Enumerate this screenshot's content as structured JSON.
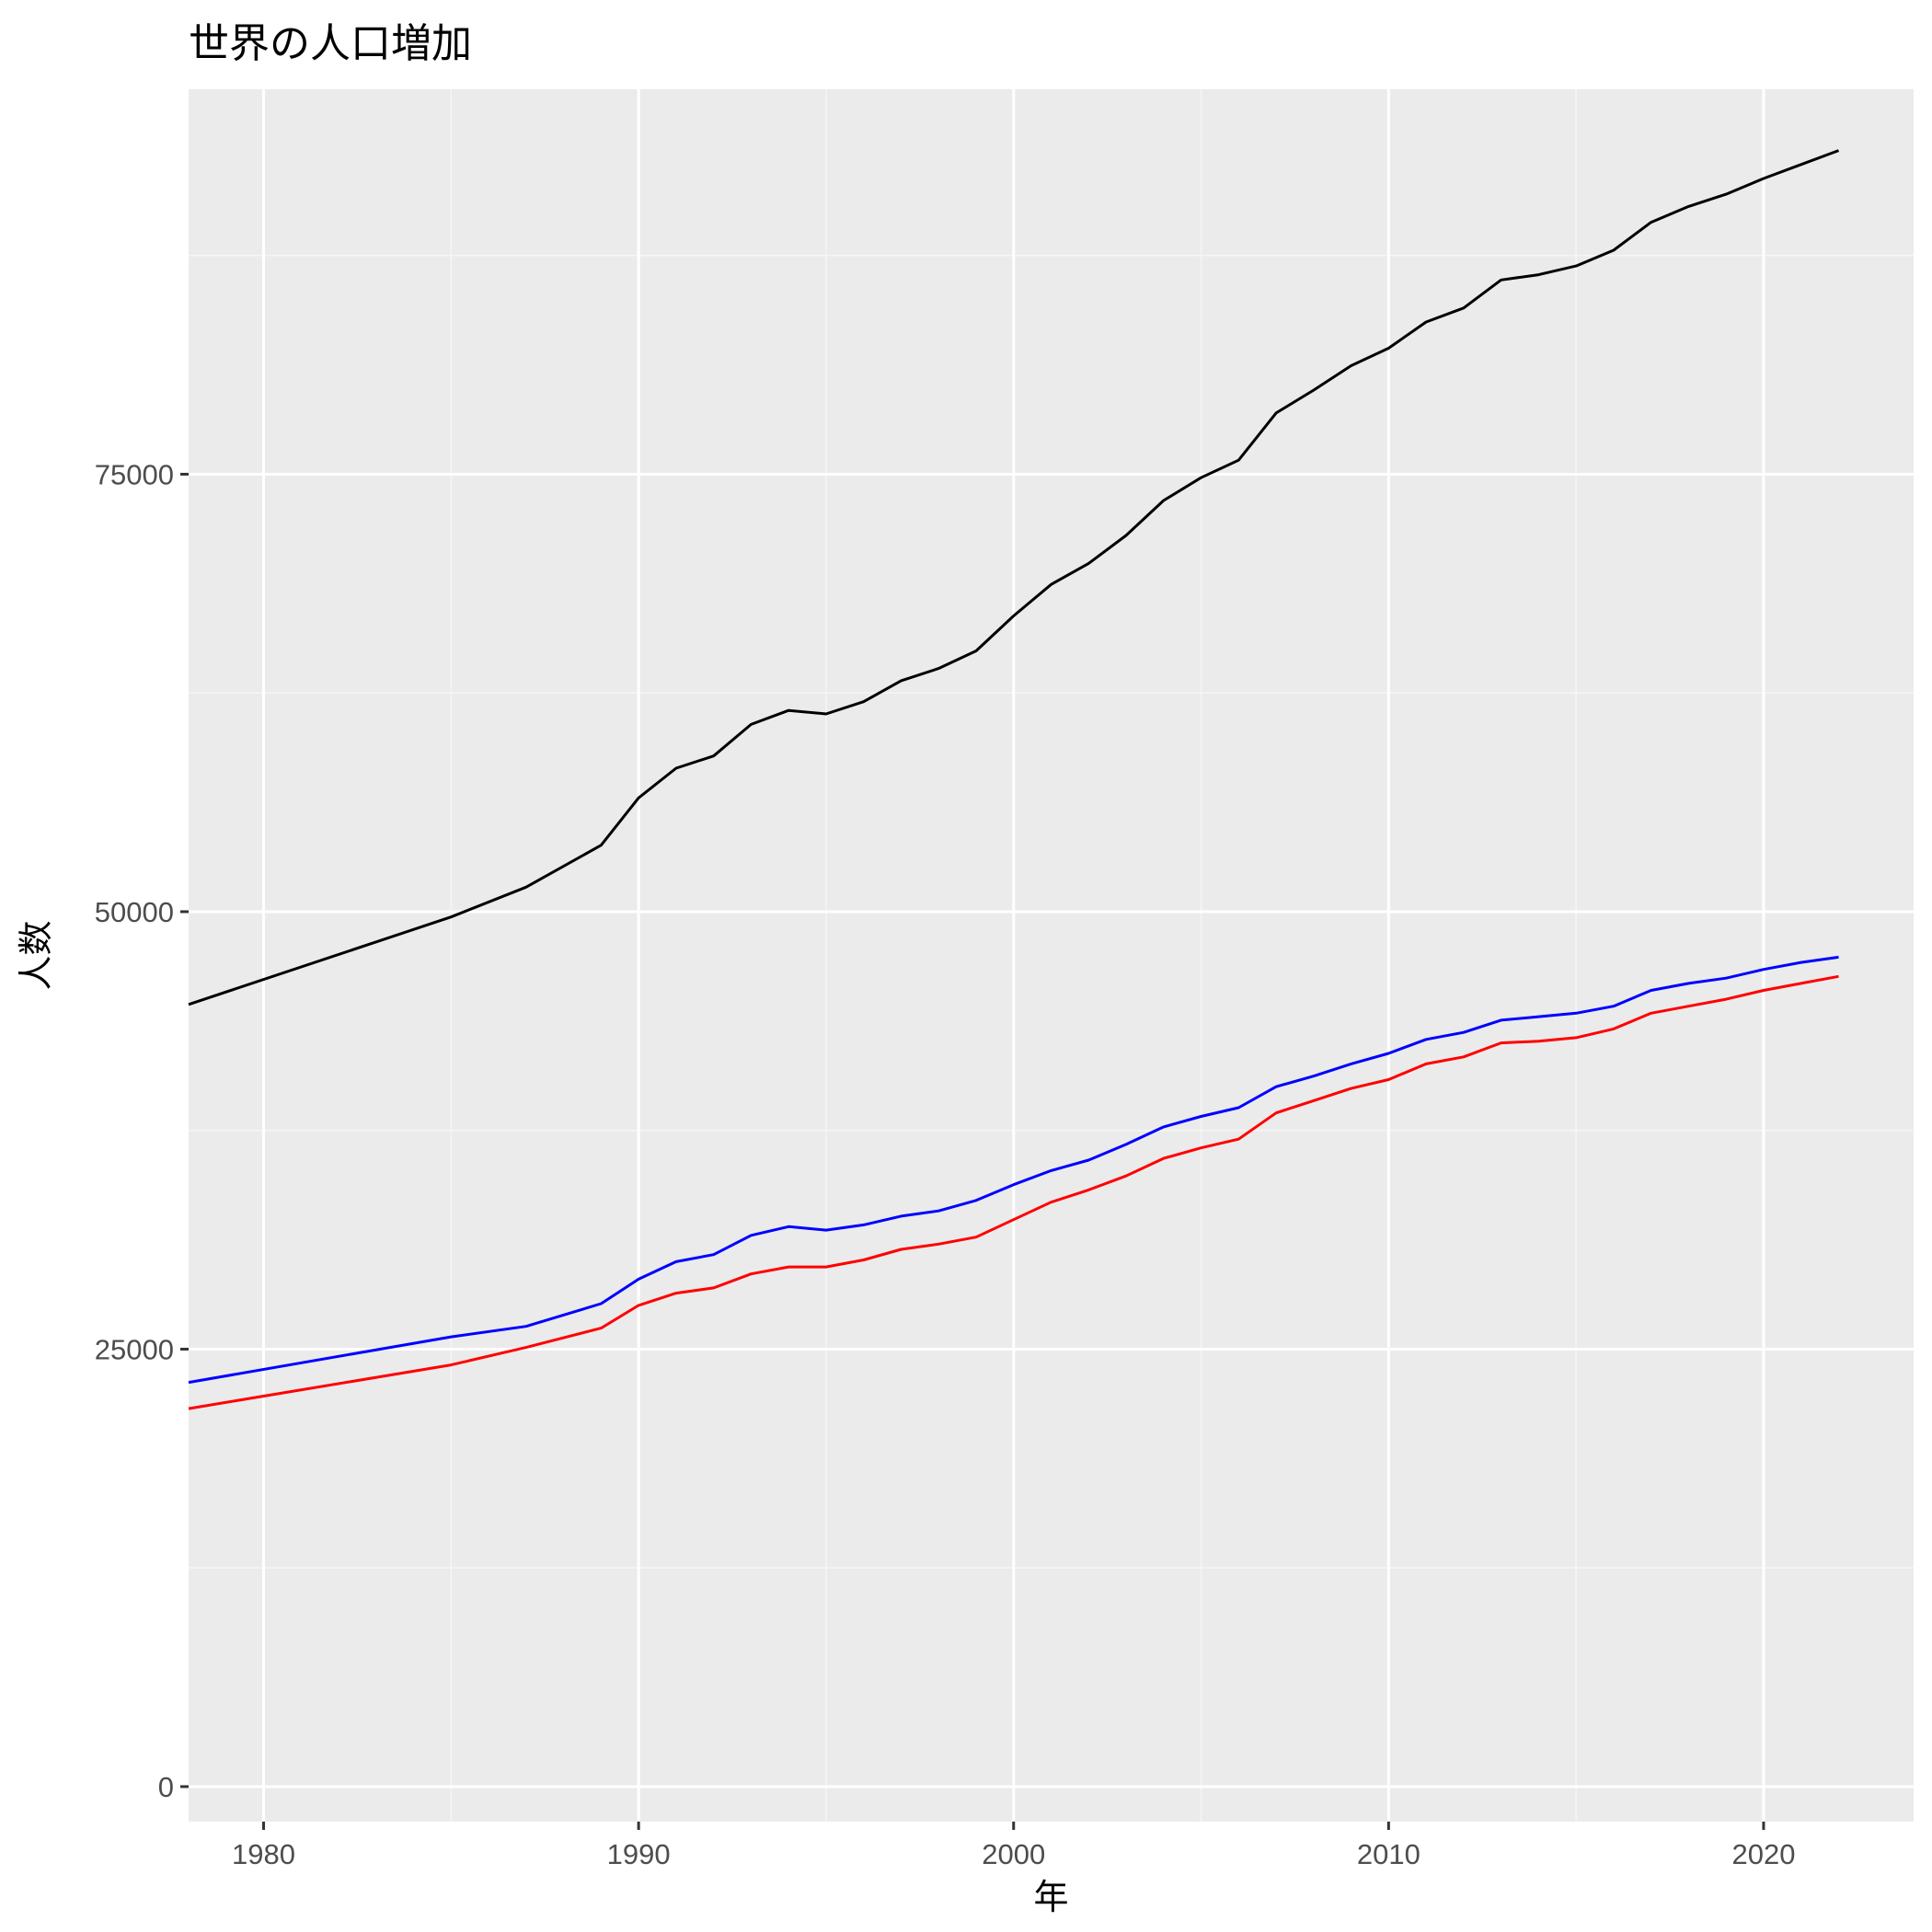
{
  "chart_data": {
    "type": "line",
    "title": "世界の人口増加",
    "xlabel": "年",
    "ylabel": "人数",
    "xlim": [
      1978,
      2024
    ],
    "ylim": [
      -2000,
      97000
    ],
    "x_ticks": [
      1980,
      1990,
      2000,
      2010,
      2020
    ],
    "y_ticks": [
      0,
      25000,
      50000,
      75000
    ],
    "grid": true,
    "legend": "none",
    "colors": {
      "panel_background": "#ebebeb",
      "grid_major": "#ffffff",
      "grid_minor": "#f5f5f5"
    },
    "series": [
      {
        "color": "#000000",
        "x": [
          1978,
          1985,
          1987,
          1989,
          1990,
          1991,
          1992,
          1993,
          1994,
          1995,
          1996,
          1997,
          1998,
          1999,
          2000,
          2001,
          2002,
          2003,
          2004,
          2005,
          2006,
          2007,
          2008,
          2009,
          2010,
          2011,
          2012,
          2013,
          2014,
          2015,
          2016,
          2017,
          2018,
          2019,
          2020,
          2021,
          2022
        ],
        "y": [
          44700,
          49700,
          51400,
          53800,
          56500,
          58200,
          58900,
          60700,
          61500,
          61300,
          62000,
          63200,
          63900,
          64900,
          66900,
          68700,
          69900,
          71500,
          73500,
          74800,
          75800,
          78500,
          79800,
          81200,
          82200,
          83700,
          84500,
          86100,
          86400,
          86900,
          87800,
          89400,
          90300,
          91000,
          91900,
          92700,
          93500
        ]
      },
      {
        "color": "#0000ff",
        "x": [
          1978,
          1985,
          1987,
          1989,
          1990,
          1991,
          1992,
          1993,
          1994,
          1995,
          1996,
          1997,
          1998,
          1999,
          2000,
          2001,
          2002,
          2003,
          2004,
          2005,
          2006,
          2007,
          2008,
          2009,
          2010,
          2011,
          2012,
          2013,
          2014,
          2015,
          2016,
          2017,
          2018,
          2019,
          2020,
          2021,
          2022
        ],
        "y": [
          23100,
          25700,
          26300,
          27600,
          29000,
          30000,
          30400,
          31500,
          32000,
          31800,
          32100,
          32600,
          32900,
          33500,
          34400,
          35200,
          35800,
          36700,
          37700,
          38300,
          38800,
          40000,
          40600,
          41300,
          41900,
          42700,
          43100,
          43800,
          44000,
          44200,
          44600,
          45500,
          45900,
          46200,
          46700,
          47100,
          47400
        ]
      },
      {
        "color": "#ff0000",
        "x": [
          1978,
          1985,
          1987,
          1989,
          1990,
          1991,
          1992,
          1993,
          1994,
          1995,
          1996,
          1997,
          1998,
          1999,
          2000,
          2001,
          2002,
          2003,
          2004,
          2005,
          2006,
          2007,
          2008,
          2009,
          2010,
          2011,
          2012,
          2013,
          2014,
          2015,
          2016,
          2017,
          2018,
          2019,
          2020,
          2021,
          2022
        ],
        "y": [
          21600,
          24100,
          25100,
          26200,
          27500,
          28200,
          28500,
          29300,
          29700,
          29700,
          30100,
          30700,
          31000,
          31400,
          32400,
          33400,
          34100,
          34900,
          35900,
          36500,
          37000,
          38500,
          39200,
          39900,
          40400,
          41300,
          41700,
          42500,
          42600,
          42800,
          43300,
          44200,
          44600,
          45000,
          45500,
          45900,
          46300
        ]
      }
    ]
  }
}
